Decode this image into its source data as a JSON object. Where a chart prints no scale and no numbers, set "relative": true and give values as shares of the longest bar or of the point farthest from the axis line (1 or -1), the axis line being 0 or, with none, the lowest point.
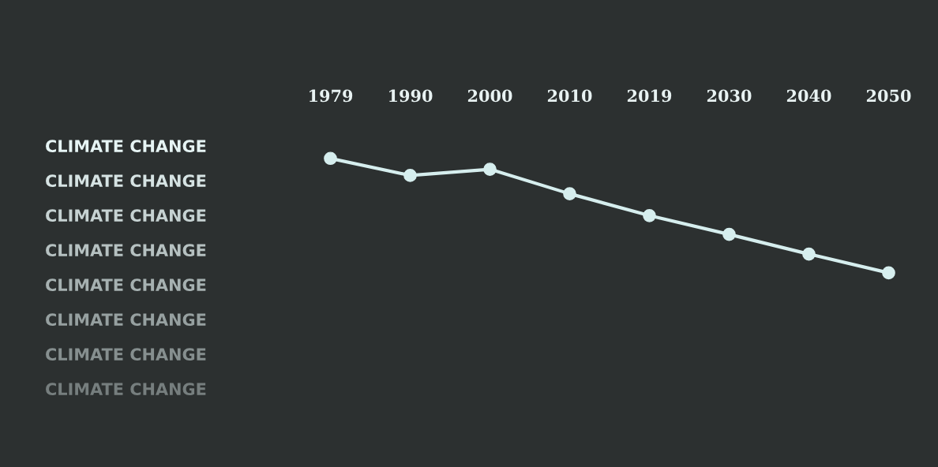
{
  "chart_data": {
    "type": "line",
    "relative": true,
    "categories": [
      "1979",
      "1990",
      "2000",
      "2010",
      "2019",
      "2030",
      "2040",
      "2050"
    ],
    "series": [
      {
        "color": "#d6eeee",
        "values": [
          1,
          0.851,
          0.905,
          0.691,
          0.5,
          0.336,
          0.164,
          0
        ]
      }
    ],
    "marker": "circle",
    "line_style": "solid",
    "grid": false,
    "legend": false,
    "annotations": [
      "CLIMATE CHANGE",
      "CLIMATE CHANGE",
      "CLIMATE CHANGE",
      "CLIMATE CHANGE",
      "CLIMATE CHANGE",
      "CLIMATE CHANGE",
      "CLIMATE CHANGE",
      "CLIMATE CHANGE"
    ]
  }
}
